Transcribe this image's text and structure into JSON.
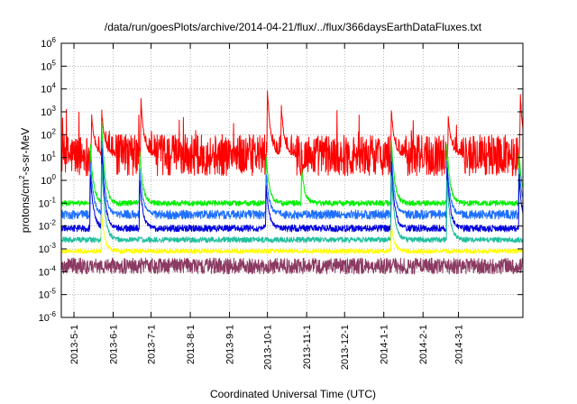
{
  "chart_data": {
    "type": "line",
    "title": "/data/run/goesPlots/archive/2014-04-21/flux/../flux/366daysEarthDataFluxes.txt",
    "xlabel": "Coordinated Universal Time (UTC)",
    "ylabel_parts": {
      "base": "protons/cm",
      "sup": "2",
      "rest": "-s-sr-MeV"
    },
    "yscale": "log",
    "ylim_exp": [
      -6,
      6
    ],
    "y_ticks": [
      {
        "base": "10",
        "exp": "-6"
      },
      {
        "base": "10",
        "exp": "-5"
      },
      {
        "base": "10",
        "exp": "-4"
      },
      {
        "base": "10",
        "exp": "-3"
      },
      {
        "base": "10",
        "exp": "-2"
      },
      {
        "base": "10",
        "exp": "-1"
      },
      {
        "base": "10",
        "exp": "0"
      },
      {
        "base": "10",
        "exp": "1"
      },
      {
        "base": "10",
        "exp": "2"
      },
      {
        "base": "10",
        "exp": "3"
      },
      {
        "base": "10",
        "exp": "4"
      },
      {
        "base": "10",
        "exp": "5"
      },
      {
        "base": "10",
        "exp": "6"
      }
    ],
    "xlim": [
      "2013-04-21",
      "2014-04-21"
    ],
    "x_ticks": [
      {
        "label": "2013-5-1",
        "date": "2013-05-01"
      },
      {
        "label": "2013-6-1",
        "date": "2013-06-01"
      },
      {
        "label": "2013-7-1",
        "date": "2013-07-01"
      },
      {
        "label": "2013-8-1",
        "date": "2013-08-01"
      },
      {
        "label": "2013-9-1",
        "date": "2013-09-01"
      },
      {
        "label": "2013-10-1",
        "date": "2013-10-01"
      },
      {
        "label": "2013-11-1",
        "date": "2013-11-01"
      },
      {
        "label": "2013-12-1",
        "date": "2013-12-01"
      },
      {
        "label": "2014-1-1",
        "date": "2014-01-01"
      },
      {
        "label": "2014-2-1",
        "date": "2014-02-01"
      },
      {
        "label": "2014-3-1",
        "date": "2014-03-01"
      }
    ],
    "grid": true,
    "series": [
      {
        "color": "#ff0000",
        "base_log": 1.1,
        "noise_log": 0.9,
        "events": [
          {
            "date": "2013-05-15",
            "peak_log": 2.8
          },
          {
            "date": "2013-05-23",
            "peak_log": 3.0
          },
          {
            "date": "2013-06-23",
            "peak_log": 3.5
          },
          {
            "date": "2013-10-01",
            "peak_log": 4.0
          },
          {
            "date": "2013-10-12",
            "peak_log": 3.2
          },
          {
            "date": "2014-01-07",
            "peak_log": 3.0
          },
          {
            "date": "2014-02-21",
            "peak_log": 2.8
          },
          {
            "date": "2014-04-19",
            "peak_log": 3.7
          }
        ]
      },
      {
        "color": "#00ee00",
        "base_log": -1.0,
        "noise_log": 0.12,
        "events": [
          {
            "date": "2013-05-14",
            "peak_log": 1.5
          },
          {
            "date": "2013-05-23",
            "peak_log": 2.5
          },
          {
            "date": "2013-06-22",
            "peak_log": 1.2
          },
          {
            "date": "2013-09-30",
            "peak_log": 1.0
          },
          {
            "date": "2013-10-28",
            "peak_log": 0.5
          },
          {
            "date": "2014-01-07",
            "peak_log": 1.8
          },
          {
            "date": "2014-02-20",
            "peak_log": 1.5
          },
          {
            "date": "2014-04-18",
            "peak_log": 1.2
          }
        ]
      },
      {
        "color": "#1e6fff",
        "base_log": -1.5,
        "noise_log": 0.2,
        "events": [
          {
            "date": "2013-05-14",
            "peak_log": 0.8
          },
          {
            "date": "2013-05-23",
            "peak_log": 1.8
          },
          {
            "date": "2013-06-22",
            "peak_log": 0.5
          },
          {
            "date": "2013-09-30",
            "peak_log": 0.3
          },
          {
            "date": "2014-01-07",
            "peak_log": 1.2
          },
          {
            "date": "2014-02-20",
            "peak_log": 0.9
          },
          {
            "date": "2014-04-18",
            "peak_log": 0.6
          }
        ]
      },
      {
        "color": "#0000dd",
        "base_log": -2.1,
        "noise_log": 0.15,
        "events": [
          {
            "date": "2013-05-14",
            "peak_log": 0.3
          },
          {
            "date": "2013-05-23",
            "peak_log": 1.4
          },
          {
            "date": "2013-06-22",
            "peak_log": 0.0
          },
          {
            "date": "2013-09-30",
            "peak_log": -0.3
          },
          {
            "date": "2014-01-07",
            "peak_log": 0.8
          },
          {
            "date": "2014-02-20",
            "peak_log": 0.5
          },
          {
            "date": "2014-04-18",
            "peak_log": 0.2
          }
        ]
      },
      {
        "color": "#1fbf9f",
        "base_log": -2.6,
        "noise_log": 0.12,
        "events": [
          {
            "date": "2013-05-23",
            "peak_log": 0.8
          },
          {
            "date": "2014-01-07",
            "peak_log": 0.3
          },
          {
            "date": "2014-02-20",
            "peak_log": 0.0
          }
        ]
      },
      {
        "color": "#ffff00",
        "base_log": -3.1,
        "noise_log": 0.1,
        "events": [
          {
            "date": "2013-05-23",
            "peak_log": -1.5
          },
          {
            "date": "2014-01-07",
            "peak_log": -2.0
          }
        ]
      },
      {
        "color": "#8b3a62",
        "base_log": -3.75,
        "noise_log": 0.35,
        "events": []
      }
    ]
  }
}
